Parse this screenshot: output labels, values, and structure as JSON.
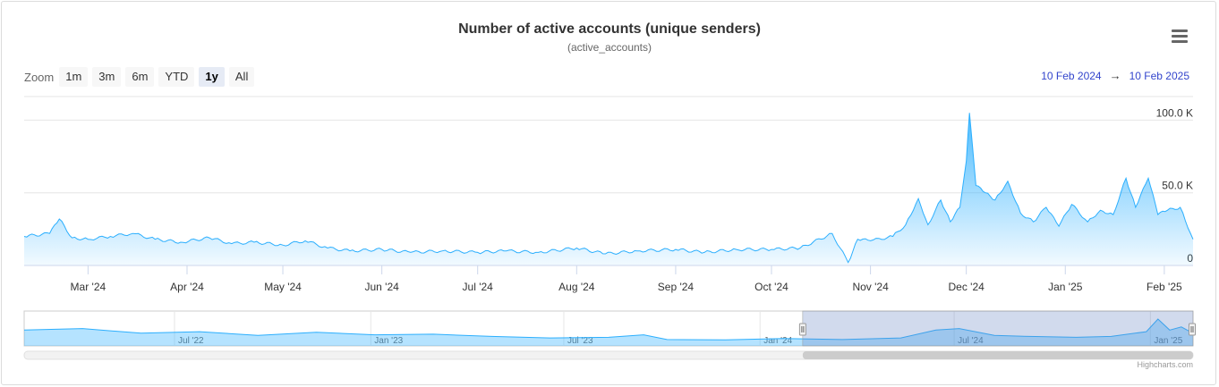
{
  "chart_data": {
    "type": "area",
    "title": "Number of active accounts (unique senders)",
    "subtitle": "(active_accounts)",
    "x_axis": {
      "ticks": [
        "Mar '24",
        "Apr '24",
        "May '24",
        "Jun '24",
        "Jul '24",
        "Aug '24",
        "Sep '24",
        "Oct '24",
        "Nov '24",
        "Dec '24",
        "Jan '25",
        "Feb '25"
      ],
      "range": [
        "2024-02-10",
        "2025-02-10"
      ]
    },
    "y_axis": {
      "ticks": [
        "0",
        "50.0 K",
        "100.0 K"
      ],
      "tick_values": [
        0,
        50000,
        100000
      ],
      "ylim": [
        0,
        115000
      ]
    },
    "series": [
      {
        "color": "#2caffe",
        "x": [
          "2024-02-10",
          "2024-02-18",
          "2024-02-21",
          "2024-02-25",
          "2024-03-01",
          "2024-03-08",
          "2024-03-15",
          "2024-03-22",
          "2024-03-30",
          "2024-04-08",
          "2024-04-15",
          "2024-04-22",
          "2024-05-01",
          "2024-05-08",
          "2024-05-15",
          "2024-05-22",
          "2024-06-01",
          "2024-06-10",
          "2024-06-20",
          "2024-07-01",
          "2024-07-10",
          "2024-07-20",
          "2024-08-01",
          "2024-08-10",
          "2024-08-20",
          "2024-09-01",
          "2024-09-10",
          "2024-09-20",
          "2024-10-01",
          "2024-10-10",
          "2024-10-20",
          "2024-10-25",
          "2024-10-28",
          "2024-11-01",
          "2024-11-08",
          "2024-11-12",
          "2024-11-16",
          "2024-11-19",
          "2024-11-23",
          "2024-11-26",
          "2024-11-29",
          "2024-12-01",
          "2024-12-02",
          "2024-12-04",
          "2024-12-07",
          "2024-12-10",
          "2024-12-14",
          "2024-12-18",
          "2024-12-22",
          "2024-12-26",
          "2024-12-30",
          "2025-01-03",
          "2025-01-08",
          "2025-01-12",
          "2025-01-16",
          "2025-01-20",
          "2025-01-23",
          "2025-01-27",
          "2025-01-30",
          "2025-02-02",
          "2025-02-06",
          "2025-02-10"
        ],
        "y": [
          20000,
          22000,
          32000,
          19000,
          18000,
          20000,
          22000,
          18000,
          16000,
          19000,
          15000,
          16000,
          14000,
          17000,
          12000,
          10000,
          11000,
          9000,
          10000,
          9000,
          10000,
          9000,
          12000,
          8000,
          10000,
          11000,
          9000,
          11000,
          11000,
          12000,
          22000,
          2000,
          18000,
          17000,
          20000,
          28000,
          46000,
          28000,
          45000,
          30000,
          40000,
          72000,
          105000,
          55000,
          50000,
          45000,
          58000,
          36000,
          30000,
          40000,
          27000,
          42000,
          30000,
          38000,
          35000,
          60000,
          40000,
          60000,
          35000,
          38000,
          40000,
          18000
        ]
      }
    ],
    "navigator": {
      "ticks": [
        "Jul '22",
        "Jan '23",
        "Jul '23",
        "Jan '24",
        "Jul '24",
        "Jan '25"
      ]
    }
  },
  "toolbar": {
    "zoom_label": "Zoom",
    "buttons": [
      "1m",
      "3m",
      "6m",
      "YTD",
      "1y",
      "All"
    ],
    "active": "1y"
  },
  "range_selector": {
    "from": "10 Feb 2024",
    "arrow": "→",
    "to": "10 Feb 2025"
  },
  "credits": "Highcharts.com",
  "menu_icon": "hamburger-menu-icon"
}
